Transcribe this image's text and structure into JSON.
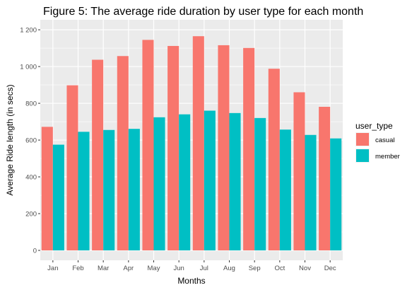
{
  "chart_data": {
    "type": "bar",
    "title": "Figure 5: The average ride duration by user type for each month",
    "xlabel": "Months",
    "ylabel": "Average Ride length (in secs)",
    "categories": [
      "Jan",
      "Feb",
      "Mar",
      "Apr",
      "May",
      "Jun",
      "Jul",
      "Aug",
      "Sep",
      "Oct",
      "Nov",
      "Dec"
    ],
    "y_ticks": [
      0,
      200,
      400,
      600,
      800,
      1000,
      1200
    ],
    "y_tick_labels": [
      "0",
      "200",
      "400",
      "600",
      "800",
      "1 000",
      "1 200"
    ],
    "ylim": [
      0,
      1235
    ],
    "grid": true,
    "legend": {
      "title": "user_type",
      "position": "right",
      "entries": [
        "casual",
        "member"
      ]
    },
    "series": [
      {
        "name": "casual",
        "color": "#F8766D",
        "values": [
          672,
          898,
          1037,
          1057,
          1145,
          1112,
          1165,
          1116,
          1101,
          988,
          860,
          781
        ]
      },
      {
        "name": "member",
        "color": "#00BFC4",
        "values": [
          575,
          645,
          655,
          661,
          724,
          740,
          760,
          747,
          720,
          657,
          628,
          609
        ]
      }
    ],
    "panel_background": "#EBEBEB",
    "grid_color": "#FFFFFF"
  }
}
